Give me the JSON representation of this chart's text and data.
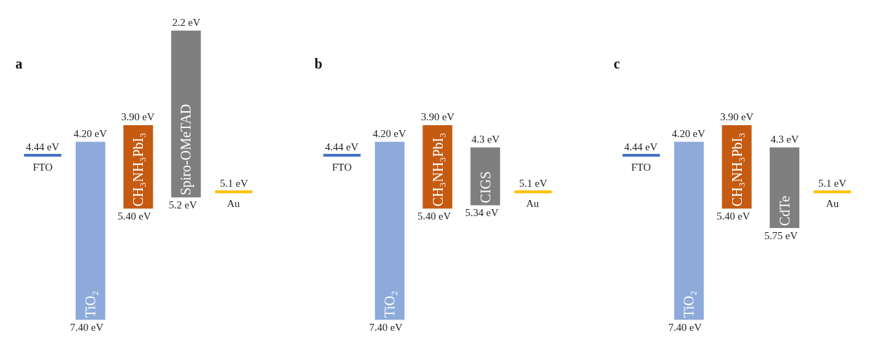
{
  "chart_data": [
    {
      "type": "other",
      "title": "a",
      "categories": [
        "FTO",
        "TiO₂",
        "CH₃NH₃PbI₃",
        "Spiro-OMeTAD",
        "Au"
      ],
      "series": [
        {
          "values": [
            null,
            4.2,
            3.9,
            2.2,
            null
          ],
          "value_labels": [
            null,
            "4.20 eV",
            "3.90 eV",
            "2.2 eV",
            null
          ],
          "colors": [
            null,
            "#8eaadb",
            "#c55a11",
            "#7f7f7f",
            null
          ]
        },
        {
          "values": [
            null,
            7.4,
            5.4,
            5.2,
            null
          ],
          "value_labels": [
            null,
            "7.40 eV",
            "5.40 eV",
            "5.2 eV",
            null
          ]
        },
        {
          "type": "scatter",
          "values": [
            4.44,
            null,
            null,
            null,
            5.1
          ],
          "value_labels": [
            "4.44 eV",
            null,
            null,
            null,
            "5.1 eV"
          ],
          "colors": [
            "#4472c4",
            null,
            null,
            null,
            "#ffc000"
          ]
        }
      ]
    },
    {
      "type": "other",
      "title": "b",
      "categories": [
        "FTO",
        "TiO₂",
        "CH₃NH₃PbI₃",
        "CIGS",
        "Au"
      ],
      "series": [
        {
          "values": [
            null,
            4.2,
            3.9,
            4.3,
            null
          ],
          "value_labels": [
            null,
            "4.20 eV",
            "3.90 eV",
            "4.3 eV",
            null
          ],
          "colors": [
            null,
            "#8eaadb",
            "#c55a11",
            "#7f7f7f",
            null
          ]
        },
        {
          "values": [
            null,
            7.4,
            5.4,
            5.34,
            null
          ],
          "value_labels": [
            null,
            "7.40 eV",
            "5.40 eV",
            "5.34 eV",
            null
          ]
        },
        {
          "type": "scatter",
          "values": [
            4.44,
            null,
            null,
            null,
            5.1
          ],
          "value_labels": [
            "4.44 eV",
            null,
            null,
            null,
            "5.1 eV"
          ],
          "colors": [
            "#4472c4",
            null,
            null,
            null,
            "#ffc000"
          ]
        }
      ]
    },
    {
      "type": "other",
      "title": "c",
      "categories": [
        "FTO",
        "TiO₂",
        "CH₃NH₃PbI₃",
        "CdTe",
        "Au"
      ],
      "series": [
        {
          "values": [
            null,
            4.2,
            3.9,
            4.3,
            null
          ],
          "value_labels": [
            null,
            "4.20 eV",
            "3.90 eV",
            "4.3 eV",
            null
          ],
          "colors": [
            null,
            "#8eaadb",
            "#c55a11",
            "#7f7f7f",
            null
          ]
        },
        {
          "values": [
            null,
            7.4,
            5.4,
            5.75,
            null
          ],
          "value_labels": [
            null,
            "7.40 eV",
            "5.40 eV",
            "5.75 eV",
            null
          ]
        },
        {
          "type": "scatter",
          "values": [
            4.44,
            null,
            null,
            null,
            5.1
          ],
          "value_labels": [
            "4.44 eV",
            null,
            null,
            null,
            "5.1 eV"
          ],
          "colors": [
            "#4472c4",
            null,
            null,
            null,
            "#ffc000"
          ]
        }
      ]
    }
  ]
}
